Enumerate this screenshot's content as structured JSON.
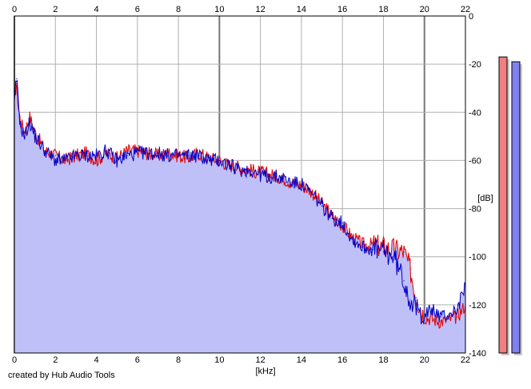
{
  "chart_data": {
    "type": "area",
    "title": "",
    "xlabel": "[kHz]",
    "ylabel": "[dB]",
    "xlim": [
      0,
      22
    ],
    "ylim": [
      -140,
      0
    ],
    "x_ticks": [
      0,
      2,
      4,
      6,
      8,
      10,
      12,
      14,
      16,
      18,
      20,
      22
    ],
    "y_ticks": [
      0,
      -20,
      -40,
      -60,
      -80,
      -100,
      -120,
      -140
    ],
    "grid": true,
    "fill_color": "#c0c0f8",
    "series": [
      {
        "color": "#e00000",
        "x": [
          0,
          0.1,
          0.2,
          0.3,
          0.5,
          0.75,
          1,
          1.5,
          2,
          2.5,
          3,
          3.5,
          4,
          4.5,
          5,
          5.5,
          6,
          6.5,
          7,
          7.5,
          8,
          8.5,
          9,
          9.5,
          10,
          10.5,
          11,
          11.5,
          12,
          12.5,
          13,
          13.5,
          14,
          14.5,
          15,
          15.5,
          16,
          16.5,
          17,
          17.5,
          18,
          18.5,
          19,
          19.3,
          19.6,
          20,
          20.4,
          20.8,
          21.2,
          21.6,
          22
        ],
        "y": [
          -35,
          -28,
          -38,
          -44,
          -48,
          -42,
          -48,
          -56,
          -58,
          -60,
          -58,
          -57,
          -60,
          -57,
          -59,
          -56,
          -56,
          -57,
          -58,
          -57,
          -58,
          -59,
          -57,
          -59,
          -60,
          -62,
          -63,
          -64,
          -65,
          -66,
          -67,
          -69,
          -70,
          -73,
          -78,
          -83,
          -87,
          -92,
          -95,
          -95,
          -96,
          -97,
          -98,
          -105,
          -117,
          -125,
          -126,
          -127,
          -126,
          -125,
          -120
        ]
      },
      {
        "color": "#0000c8",
        "x": [
          0,
          0.1,
          0.2,
          0.3,
          0.5,
          0.75,
          1,
          1.5,
          2,
          2.5,
          3,
          3.5,
          4,
          4.5,
          5,
          5.5,
          6,
          6.5,
          7,
          7.5,
          8,
          8.5,
          9,
          9.5,
          10,
          10.5,
          11,
          11.5,
          12,
          12.5,
          13,
          13.5,
          14,
          14.5,
          15,
          15.5,
          16,
          16.5,
          17,
          17.5,
          18,
          18.5,
          19,
          19.3,
          19.6,
          20,
          20.4,
          20.8,
          21.2,
          21.6,
          22
        ],
        "y": [
          -37,
          -26,
          -36,
          -46,
          -50,
          -44,
          -50,
          -56,
          -60,
          -60,
          -58,
          -58,
          -58,
          -56,
          -60,
          -58,
          -57,
          -57,
          -57,
          -58,
          -58,
          -58,
          -58,
          -60,
          -60,
          -62,
          -64,
          -64,
          -66,
          -67,
          -67,
          -69,
          -70,
          -74,
          -79,
          -84,
          -86,
          -93,
          -96,
          -97,
          -98,
          -100,
          -110,
          -118,
          -122,
          -124,
          -122,
          -125,
          -124,
          -122,
          -112
        ]
      }
    ],
    "level_meters": [
      {
        "color": "#f08080",
        "value_db": -17
      },
      {
        "color": "#8080f0",
        "value_db": -19
      }
    ]
  },
  "footer": {
    "credit": "created by Hub Audio Tools"
  }
}
